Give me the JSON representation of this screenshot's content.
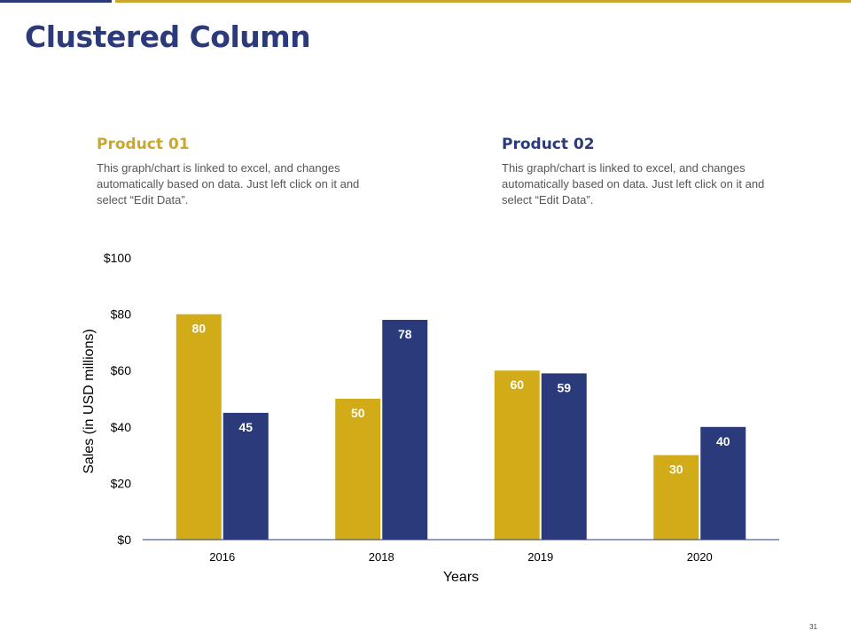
{
  "slide": {
    "title": "Clustered Column",
    "page_number": "31"
  },
  "products": [
    {
      "heading": "Product 01",
      "text": "This graph/chart is linked to excel, and changes automatically based on data. Just left click on it and select “Edit Data”."
    },
    {
      "heading": "Product 02",
      "text": "This graph/chart is linked to excel, and changes automatically based on data. Just left click on it and select “Edit Data”."
    }
  ],
  "colors": {
    "gold": "#d1ab18",
    "navy": "#2a3a7a"
  },
  "chart_data": {
    "type": "bar",
    "categories": [
      "2016",
      "2018",
      "2019",
      "2020"
    ],
    "series": [
      {
        "name": "Product 01",
        "values": [
          80,
          50,
          60,
          30
        ]
      },
      {
        "name": "Product 02",
        "values": [
          45,
          78,
          59,
          40
        ]
      }
    ],
    "title": "",
    "xlabel": "Years",
    "ylabel": "Sales (in USD millions)",
    "ylim": [
      0,
      100
    ],
    "yticks": [
      0,
      20,
      40,
      60,
      80,
      100
    ],
    "ytick_labels": [
      "$0",
      "$20",
      "$40",
      "$60",
      "$80",
      "$100"
    ],
    "grid": false,
    "legend": "none"
  }
}
